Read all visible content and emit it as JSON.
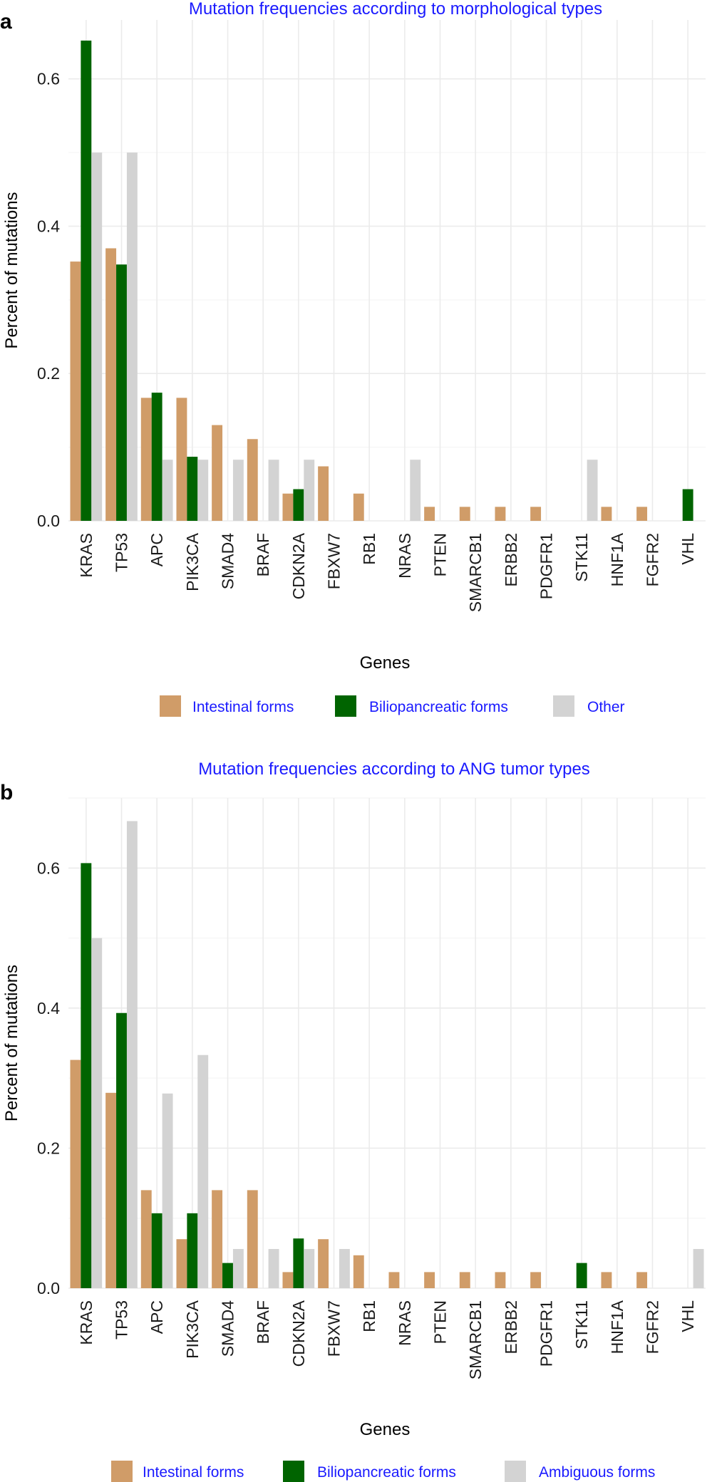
{
  "panels": [
    {
      "letter": "a"
    },
    {
      "letter": "b"
    }
  ],
  "chart_data": [
    {
      "type": "bar",
      "title": "Mutation frequencies according to morphological types",
      "xlabel": "Genes",
      "ylabel": "Percent of mutations",
      "ylim": [
        0,
        0.68
      ],
      "yticks": [
        0.0,
        0.2,
        0.4,
        0.6
      ],
      "ytick_labels": [
        "0.0",
        "0.2",
        "0.4",
        "0.6"
      ],
      "grid": true,
      "legend_position": "bottom",
      "categories": [
        "KRAS",
        "TP53",
        "APC",
        "PIK3CA",
        "SMAD4",
        "BRAF",
        "CDKN2A",
        "FBXW7",
        "RB1",
        "NRAS",
        "PTEN",
        "SMARCB1",
        "ERBB2",
        "PDGFR1",
        "STK11",
        "HNF1A",
        "FGFR2",
        "VHL"
      ],
      "series": [
        {
          "name": "Intestinal forms",
          "color": "#d09c68",
          "values": [
            0.352,
            0.37,
            0.167,
            0.167,
            0.13,
            0.111,
            0.037,
            0.074,
            0.037,
            0,
            0.019,
            0.019,
            0.019,
            0.019,
            0,
            0.019,
            0.019,
            0
          ]
        },
        {
          "name": "Biliopancreatic forms",
          "color": "#006400",
          "values": [
            0.652,
            0.348,
            0.174,
            0.087,
            0,
            0,
            0.043,
            0,
            0,
            0,
            0,
            0,
            0,
            0,
            0,
            0,
            0,
            0.043
          ]
        },
        {
          "name": "Other",
          "color": "#d3d3d3",
          "values": [
            0.5,
            0.5,
            0.083,
            0.083,
            0.083,
            0.083,
            0.083,
            0,
            0,
            0.083,
            0,
            0,
            0,
            0,
            0.083,
            0,
            0,
            0
          ]
        }
      ]
    },
    {
      "type": "bar",
      "title": "Mutation frequencies according to ANG tumor types",
      "xlabel": "Genes",
      "ylabel": "Percent of mutations",
      "ylim": [
        0,
        0.7
      ],
      "yticks": [
        0.0,
        0.2,
        0.4,
        0.6
      ],
      "ytick_labels": [
        "0.0",
        "0.2",
        "0.4",
        "0.6"
      ],
      "grid": true,
      "legend_position": "bottom",
      "categories": [
        "KRAS",
        "TP53",
        "APC",
        "PIK3CA",
        "SMAD4",
        "BRAF",
        "CDKN2A",
        "FBXW7",
        "RB1",
        "NRAS",
        "PTEN",
        "SMARCB1",
        "ERBB2",
        "PDGFR1",
        "STK11",
        "HNF1A",
        "FGFR2",
        "VHL"
      ],
      "series": [
        {
          "name": "Intestinal forms",
          "color": "#d09c68",
          "values": [
            0.326,
            0.279,
            0.14,
            0.07,
            0.14,
            0.14,
            0.023,
            0.07,
            0.047,
            0.023,
            0.023,
            0.023,
            0.023,
            0.023,
            0,
            0.023,
            0.023,
            0
          ]
        },
        {
          "name": "Biliopancreatic forms",
          "color": "#006400",
          "values": [
            0.607,
            0.393,
            0.107,
            0.107,
            0.036,
            0,
            0.071,
            0,
            0,
            0,
            0,
            0,
            0,
            0,
            0.036,
            0,
            0,
            0
          ]
        },
        {
          "name": "Ambiguous forms",
          "color": "#d3d3d3",
          "values": [
            0.5,
            0.667,
            0.278,
            0.333,
            0.056,
            0.056,
            0.056,
            0.056,
            0,
            0,
            0,
            0,
            0,
            0,
            0,
            0,
            0,
            0.056
          ]
        }
      ]
    }
  ]
}
